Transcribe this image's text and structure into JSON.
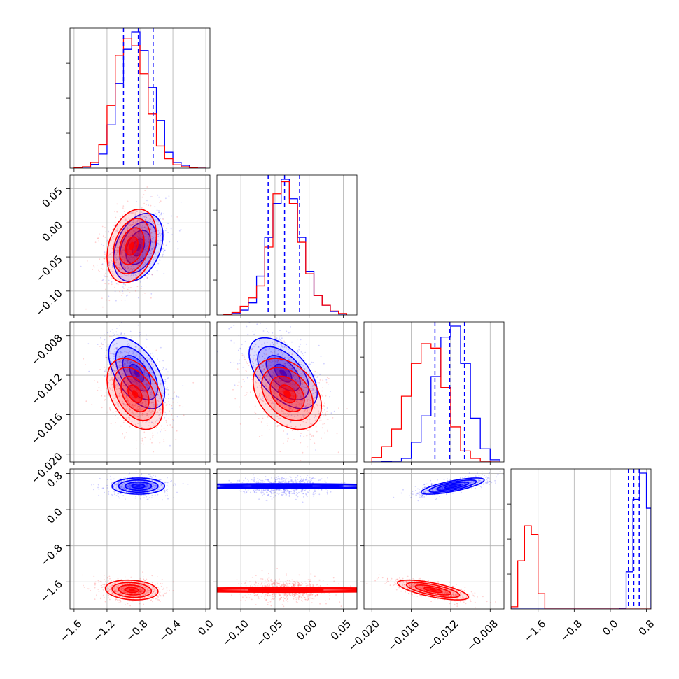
{
  "chart_data": {
    "type": "corner",
    "colors": {
      "series_a": "#0000ff",
      "series_b": "#ff0000",
      "grid": "#b0b0b0",
      "frame": "#000000"
    },
    "grid": true,
    "series": [
      {
        "color": "#0000ff"
      },
      {
        "color": "#ff0000"
      }
    ],
    "parameters": [
      {
        "range": [
          -1.65,
          0.05
        ],
        "ticks": [
          -1.6,
          -1.2,
          -0.8,
          -0.4,
          0.0
        ],
        "tick_labels": [
          "−1.6",
          "−1.2",
          "−0.8",
          "−0.4",
          "0.0"
        ],
        "quantiles": [
          -1.0,
          -0.82,
          -0.64
        ]
      },
      {
        "range": [
          -0.135,
          0.07
        ],
        "ticks": [
          -0.1,
          -0.05,
          0.0,
          0.05
        ],
        "tick_labels": [
          "−0.10",
          "−0.05",
          "0.00",
          "0.05"
        ],
        "quantiles": [
          -0.06,
          -0.036,
          -0.014
        ]
      },
      {
        "range": [
          -0.0208,
          -0.0066
        ],
        "ticks": [
          -0.02,
          -0.016,
          -0.012,
          -0.008
        ],
        "tick_labels": [
          "−0.020",
          "−0.016",
          "−0.012",
          "−0.008"
        ],
        "quantiles": [
          -0.0136,
          -0.0121,
          -0.0106
        ]
      },
      {
        "range": [
          -2.2,
          0.9
        ],
        "ticks": [
          -1.6,
          -0.8,
          0.0,
          0.8
        ],
        "tick_labels": [
          "−1.6",
          "−0.8",
          "0.0",
          "0.8"
        ],
        "quantiles": [
          0.4,
          0.52,
          0.64
        ]
      }
    ],
    "histograms": [
      {
        "param": 0,
        "series": [
          {
            "color": "#0000ff",
            "edges": [
              -1.6,
              -1.5,
              -1.4,
              -1.3,
              -1.2,
              -1.1,
              -1.0,
              -0.9,
              -0.8,
              -0.7,
              -0.6,
              -0.5,
              -0.4,
              -0.3,
              -0.2,
              -0.1,
              0.0
            ],
            "counts": [
              0,
              2,
              8,
              30,
              92,
              180,
              253,
              289,
              250,
              171,
              101,
              34,
              12,
              6,
              2,
              0
            ]
          },
          {
            "color": "#ff0000",
            "edges": [
              -1.6,
              -1.5,
              -1.4,
              -1.3,
              -1.2,
              -1.1,
              -1.0,
              -0.9,
              -0.8,
              -0.7,
              -0.6,
              -0.5,
              -0.4,
              -0.3,
              -0.2,
              -0.1,
              0.0
            ],
            "counts": [
              1,
              3,
              12,
              50,
              133,
              240,
              276,
              261,
              200,
              115,
              47,
              20,
              7,
              3,
              1,
              0
            ]
          }
        ]
      },
      {
        "param": 1,
        "series": [
          {
            "color": "#0000ff",
            "edges": [
              -0.125,
              -0.113,
              -0.101,
              -0.089,
              -0.077,
              -0.065,
              -0.053,
              -0.041,
              -0.029,
              -0.017,
              -0.005,
              0.007,
              0.019,
              0.031,
              0.043,
              0.055
            ],
            "counts": [
              0,
              3,
              10,
              25,
              80,
              160,
              230,
              280,
              240,
              160,
              90,
              40,
              20,
              7,
              2
            ]
          },
          {
            "color": "#ff0000",
            "edges": [
              -0.125,
              -0.113,
              -0.101,
              -0.089,
              -0.077,
              -0.065,
              -0.053,
              -0.041,
              -0.029,
              -0.017,
              -0.005,
              0.007,
              0.019,
              0.031,
              0.043,
              0.055
            ],
            "counts": [
              1,
              5,
              18,
              35,
              60,
              140,
              250,
              275,
              230,
              150,
              85,
              40,
              20,
              8,
              3
            ]
          }
        ]
      },
      {
        "param": 2,
        "series": [
          {
            "color": "#0000ff",
            "edges": [
              -0.02,
              -0.019,
              -0.018,
              -0.017,
              -0.016,
              -0.015,
              -0.014,
              -0.013,
              -0.012,
              -0.011,
              -0.01,
              -0.009,
              -0.008,
              -0.007
            ],
            "counts": [
              0,
              1,
              2,
              8,
              45,
              105,
              195,
              285,
              310,
              225,
              100,
              30,
              5
            ]
          },
          {
            "color": "#ff0000",
            "edges": [
              -0.02,
              -0.019,
              -0.018,
              -0.017,
              -0.016,
              -0.015,
              -0.014,
              -0.013,
              -0.012,
              -0.011,
              -0.01,
              -0.009,
              -0.008,
              -0.007
            ],
            "counts": [
              10,
              35,
              75,
              150,
              225,
              270,
              260,
              170,
              80,
              25,
              8,
              2,
              0
            ]
          }
        ]
      },
      {
        "param": 3,
        "series": [
          {
            "color": "#0000ff",
            "edges": [
              -2.2,
              -2.05,
              -1.9,
              -1.75,
              -1.6,
              -1.45,
              -1.3,
              -1.15,
              -1.0,
              -0.85,
              -0.7,
              -0.55,
              -0.4,
              -0.25,
              -0.1,
              0.05,
              0.2,
              0.35,
              0.5,
              0.65,
              0.8,
              0.9
            ],
            "counts": [
              0,
              0,
              0,
              0,
              0,
              0,
              0,
              0,
              0,
              0,
              0,
              0,
              0,
              0,
              0,
              0,
              2,
              85,
              250,
              310,
              230
            ]
          },
          {
            "color": "#ff0000",
            "edges": [
              -2.2,
              -2.05,
              -1.9,
              -1.75,
              -1.6,
              -1.45,
              -1.3,
              -1.15,
              -1.0,
              -0.85,
              -0.7,
              -0.55,
              -0.4,
              -0.25,
              -0.1,
              0.05,
              0.2,
              0.35,
              0.5,
              0.65,
              0.8,
              0.9
            ],
            "counts": [
              5,
              110,
              190,
              170,
              35,
              0,
              0,
              0,
              0,
              0,
              0,
              0,
              0,
              0,
              0,
              0,
              0,
              0,
              0,
              0,
              0
            ]
          }
        ]
      }
    ],
    "scatter_panels": [
      {
        "x_param": 0,
        "y_param": 1,
        "series": [
          {
            "color": "#0000ff",
            "center": [
              -0.82,
              -0.036
            ],
            "sigma": [
              0.15,
              0.025
            ],
            "rho": 0.35
          },
          {
            "color": "#ff0000",
            "center": [
              -0.9,
              -0.034
            ],
            "sigma": [
              0.15,
              0.027
            ],
            "rho": 0.3
          }
        ]
      },
      {
        "x_param": 0,
        "y_param": 2,
        "series": [
          {
            "color": "#0000ff",
            "center": [
              -0.84,
              -0.0118
            ],
            "sigma": [
              0.17,
              0.0018
            ],
            "rho": -0.55
          },
          {
            "color": "#ff0000",
            "center": [
              -0.86,
              -0.0139
            ],
            "sigma": [
              0.17,
              0.0018
            ],
            "rho": -0.4
          }
        ]
      },
      {
        "x_param": 1,
        "y_param": 2,
        "series": [
          {
            "color": "#0000ff",
            "center": [
              -0.038,
              -0.0118
            ],
            "sigma": [
              0.025,
              0.0018
            ],
            "rho": -0.55
          },
          {
            "color": "#ff0000",
            "center": [
              -0.032,
              -0.0139
            ],
            "sigma": [
              0.025,
              0.0018
            ],
            "rho": -0.35
          }
        ]
      },
      {
        "x_param": 0,
        "y_param": 3,
        "series": [
          {
            "color": "#0000ff",
            "center": [
              -0.82,
              0.52
            ],
            "sigma": [
              0.16,
              0.09
            ],
            "rho": 0.0
          },
          {
            "color": "#ff0000",
            "center": [
              -0.9,
              -1.78
            ],
            "sigma": [
              0.16,
              0.11
            ],
            "rho": -0.15
          }
        ]
      },
      {
        "x_param": 1,
        "y_param": 3,
        "series": [
          {
            "color": "#0000ff",
            "center": [
              -0.04,
              0.52
            ],
            "sigma": [
              0.027,
              0.09
            ],
            "rho": 0.0
          },
          {
            "color": "#ff0000",
            "center": [
              -0.034,
              -1.78
            ],
            "sigma": [
              0.026,
              0.11
            ],
            "rho": 0.0
          }
        ]
      },
      {
        "x_param": 2,
        "y_param": 3,
        "series": [
          {
            "color": "#0000ff",
            "center": [
              -0.0118,
              0.52
            ],
            "sigma": [
              0.0016,
              0.09
            ],
            "rho": 0.75
          },
          {
            "color": "#ff0000",
            "center": [
              -0.0138,
              -1.78
            ],
            "sigma": [
              0.0018,
              0.11
            ],
            "rho": -0.7
          }
        ]
      }
    ]
  }
}
